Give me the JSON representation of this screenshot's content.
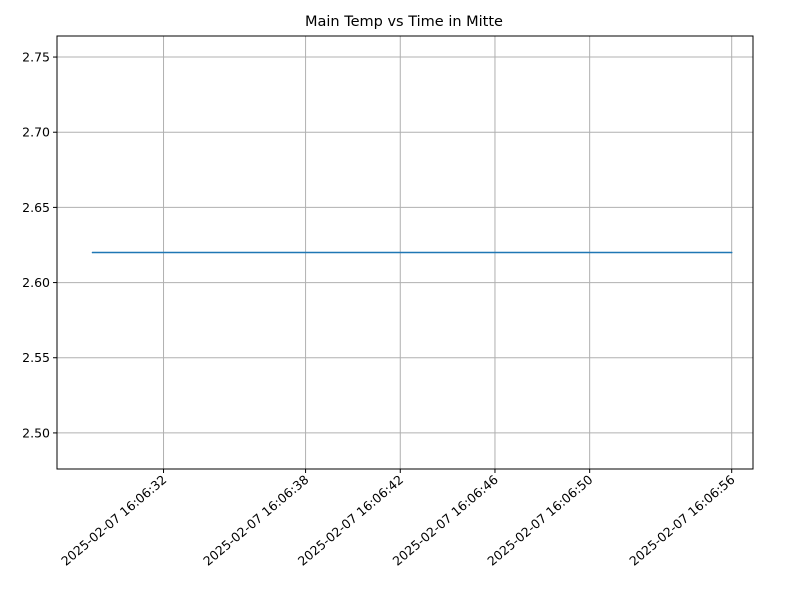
{
  "chart_data": {
    "type": "line",
    "title": "Main Temp vs Time in Mitte",
    "xlabel": "",
    "ylabel": "",
    "grid": true,
    "x_type": "datetime",
    "x": [
      "2025-02-07 16:06:29",
      "2025-02-07 16:06:56"
    ],
    "series": [
      {
        "values": [
          2.62,
          2.62
        ],
        "color": "#1f77b4"
      }
    ],
    "xlim": [
      "2025-02-07 16:06:27.5",
      "2025-02-07 16:06:56.9"
    ],
    "ylim": [
      2.476,
      2.764
    ],
    "x_ticks": [
      {
        "value": "2025-02-07 16:06:32",
        "label": "2025-02-07 16:06:32"
      },
      {
        "value": "2025-02-07 16:06:38",
        "label": "2025-02-07 16:06:38"
      },
      {
        "value": "2025-02-07 16:06:42",
        "label": "2025-02-07 16:06:42"
      },
      {
        "value": "2025-02-07 16:06:46",
        "label": "2025-02-07 16:06:46"
      },
      {
        "value": "2025-02-07 16:06:50",
        "label": "2025-02-07 16:06:50"
      },
      {
        "value": "2025-02-07 16:06:56",
        "label": "2025-02-07 16:06:56"
      }
    ],
    "y_ticks": [
      {
        "value": 2.5,
        "label": "2.50"
      },
      {
        "value": 2.55,
        "label": "2.55"
      },
      {
        "value": 2.6,
        "label": "2.60"
      },
      {
        "value": 2.65,
        "label": "2.65"
      },
      {
        "value": 2.7,
        "label": "2.70"
      },
      {
        "value": 2.75,
        "label": "2.75"
      }
    ]
  }
}
